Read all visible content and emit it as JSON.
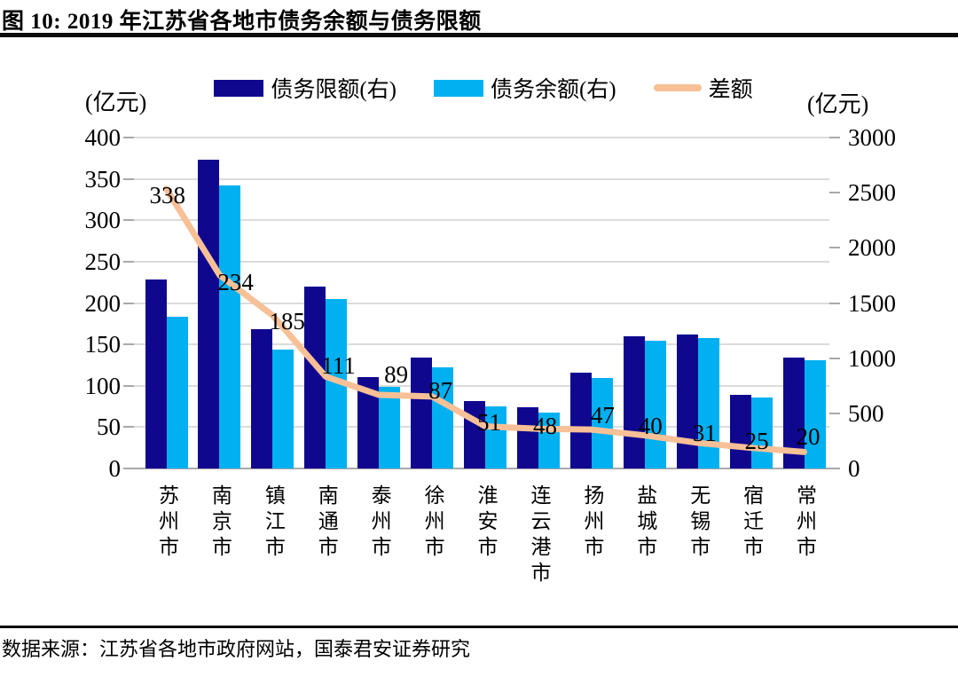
{
  "figure": {
    "title": "图 10:  2019 年江苏省各地市债务余额与债务限额",
    "source": "数据来源：江苏省各地市政府网站，国泰君安证券研究"
  },
  "chart_data": {
    "type": "bar",
    "subtype": "bar-line-combo",
    "title": "2019 年江苏省各地市债务余额与债务限额",
    "categories": [
      "苏州市",
      "南京市",
      "镇江市",
      "南通市",
      "泰州市",
      "徐州市",
      "淮安市",
      "连云港市",
      "扬州市",
      "盐城市",
      "无锡市",
      "宿迁市",
      "常州市"
    ],
    "series": [
      {
        "name": "债务限额(右)",
        "type": "bar",
        "axis": "right",
        "color": "#10078F",
        "values": [
          1711,
          2799,
          1263,
          1649,
          830,
          1004,
          612,
          553,
          870,
          1200,
          1212,
          670,
          1003
        ]
      },
      {
        "name": "债务余额(右)",
        "type": "bar",
        "axis": "right",
        "color": "#00B0F0",
        "values": [
          1373,
          2565,
          1078,
          1538,
          741,
          917,
          561,
          505,
          823,
          1160,
          1181,
          645,
          983
        ]
      },
      {
        "name": "差额",
        "type": "line",
        "axis": "left",
        "color": "#F7C096",
        "values": [
          338,
          234,
          185,
          111,
          89,
          87,
          51,
          48,
          47,
          40,
          31,
          25,
          20
        ],
        "data_labels": [
          "338",
          "234",
          "185",
          "111",
          "89",
          "87",
          "51",
          "48",
          "47",
          "40",
          "31",
          "25",
          "20"
        ]
      }
    ],
    "left_axis": {
      "unit": "(亿元)",
      "min": 0,
      "max": 400,
      "step": 50,
      "ticks": [
        0,
        50,
        100,
        150,
        200,
        250,
        300,
        350,
        400
      ]
    },
    "right_axis": {
      "unit": "(亿元)",
      "min": 0,
      "max": 3000,
      "step": 500,
      "ticks": [
        0,
        500,
        1000,
        1500,
        2000,
        2500,
        3000
      ]
    },
    "grid": "horizontal",
    "legend_position": "top",
    "colors": {
      "gridline": "#dbdbdb",
      "axis": "#a9a9a9",
      "text": "#000000"
    }
  }
}
